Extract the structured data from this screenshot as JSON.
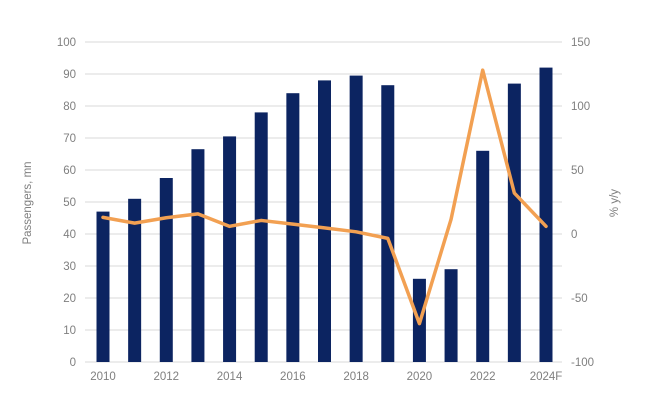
{
  "chart_data": {
    "type": "bar",
    "subtype": "combo-bar-line-dual-axis",
    "title": "",
    "categories": [
      "2010",
      "2011",
      "2012",
      "2013",
      "2014",
      "2015",
      "2016",
      "2017",
      "2018",
      "2019",
      "2020",
      "2021",
      "2022",
      "2023",
      "2024F"
    ],
    "series": [
      {
        "name": "Passengers, mn",
        "type": "bar",
        "axis": "left",
        "values": [
          47,
          51,
          57.5,
          66.5,
          70.5,
          78,
          84,
          88,
          89.5,
          86.5,
          26,
          29,
          66,
          87,
          92
        ]
      },
      {
        "name": "% y/y",
        "type": "line",
        "axis": "right",
        "values": [
          13,
          8.5,
          12.7,
          15.7,
          6.0,
          10.6,
          7.7,
          4.8,
          1.7,
          -3.4,
          -70,
          11.5,
          128,
          32,
          6
        ]
      }
    ],
    "left_axis": {
      "label": "Passengers, mn",
      "min": 0,
      "max": 100,
      "ticks": [
        0,
        10,
        20,
        30,
        40,
        50,
        60,
        70,
        80,
        90,
        100
      ]
    },
    "right_axis": {
      "label": "% y/y",
      "min": -100,
      "max": 150,
      "ticks": [
        -100,
        -50,
        0,
        50,
        100,
        150
      ]
    },
    "x_axis": {
      "tick_labels": [
        "2010",
        "2012",
        "2014",
        "2016",
        "2018",
        "2020",
        "2022",
        "2024F"
      ]
    },
    "grid": true,
    "legend": "none"
  },
  "colors": {
    "bar": "#0c2461",
    "line": "#f2a052",
    "grid": "#d9d9d9",
    "axis_line": "#d9d9d9",
    "tick_text": "#7f7f7f"
  }
}
